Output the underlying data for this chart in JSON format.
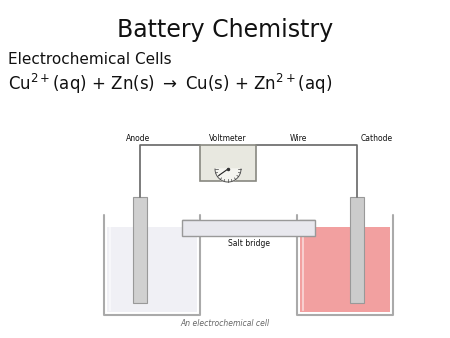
{
  "title": "Battery Chemistry",
  "subtitle": "Electrochemical Cells",
  "caption": "An electrochemical cell",
  "label_anode": "Anode",
  "label_cathode": "Cathode",
  "label_wire": "Wire",
  "label_salt_bridge": "Salt bridge",
  "label_voltmeter": "Voltmeter",
  "bg_color": "#ffffff",
  "text_color": "#111111",
  "beaker_edge_color": "#aaaaaa",
  "solution_left_color": "#f0f0f5",
  "solution_right_color": "#f2a0a0",
  "electrode_color": "#c8c8c8",
  "wire_color": "#666666",
  "salt_bridge_fill": "#e8e8ee",
  "voltmeter_face": "#e8e8e0",
  "voltmeter_edge": "#888880",
  "label_fs": 5.5,
  "title_fs": 17,
  "subtitle_fs": 11,
  "equation_fs": 12
}
